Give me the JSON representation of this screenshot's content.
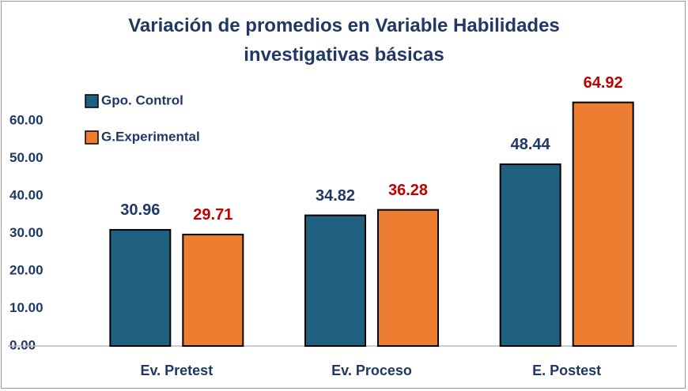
{
  "chart_data": {
    "type": "bar",
    "title": "Variación de promedios en Variable Habilidades investigativas básicas",
    "categories": [
      "Ev. Pretest",
      "Ev. Proceso",
      "E. Postest"
    ],
    "series": [
      {
        "name": "Gpo. Control",
        "color": "#1f5f80",
        "label_color": "#1f3864",
        "values": [
          30.96,
          34.82,
          48.44
        ]
      },
      {
        "name": "G.Experimental",
        "color": "#ed7d31",
        "label_color": "#c00000",
        "values": [
          29.71,
          36.28,
          64.92
        ]
      }
    ],
    "ylim": [
      0,
      80
    ],
    "yticks": [
      {
        "value": 0,
        "label": "0.00"
      },
      {
        "value": 10,
        "label": "10.00"
      },
      {
        "value": 20,
        "label": "20.00"
      },
      {
        "value": 30,
        "label": "30.00"
      },
      {
        "value": 40,
        "label": "40.00"
      },
      {
        "value": 50,
        "label": "50.00"
      },
      {
        "value": 60,
        "label": "60.00"
      }
    ],
    "grid": false,
    "legend": "upper left"
  }
}
